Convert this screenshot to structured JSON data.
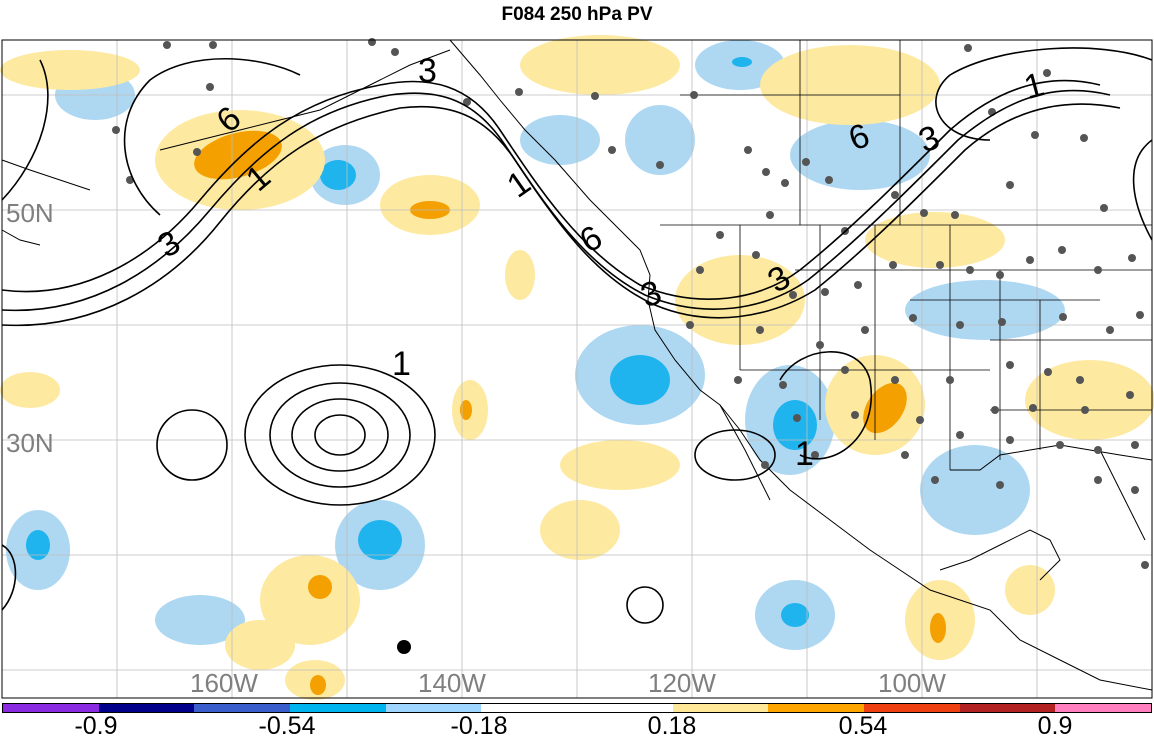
{
  "title": "F084 250 hPa PV",
  "lat_labels": [
    "50N",
    "30N"
  ],
  "lon_labels": [
    "160W",
    "140W",
    "120W",
    "100W"
  ],
  "contour_labels": [
    "3",
    "6",
    "1",
    "3",
    "1",
    "6",
    "3",
    "1",
    "3",
    "6",
    "3",
    "1",
    "1"
  ],
  "colorbar": {
    "colors": [
      "#8a2be2",
      "#00008b",
      "#3a5fcd",
      "#00b4f0",
      "#9fd6ff",
      "#ffffff",
      "#ffffff",
      "#ffe999",
      "#ffa500",
      "#ee4010",
      "#b22222",
      "#ff7fbf"
    ],
    "labels": [
      "-0.9",
      "-0.54",
      "-0.18",
      "0.18",
      "0.54",
      "0.9"
    ]
  },
  "fill_colors": {
    "light_blue": "#aed8f2",
    "mid_blue": "#1fb4ee",
    "light_yellow": "#fde9a0",
    "orange": "#f4a000"
  }
}
